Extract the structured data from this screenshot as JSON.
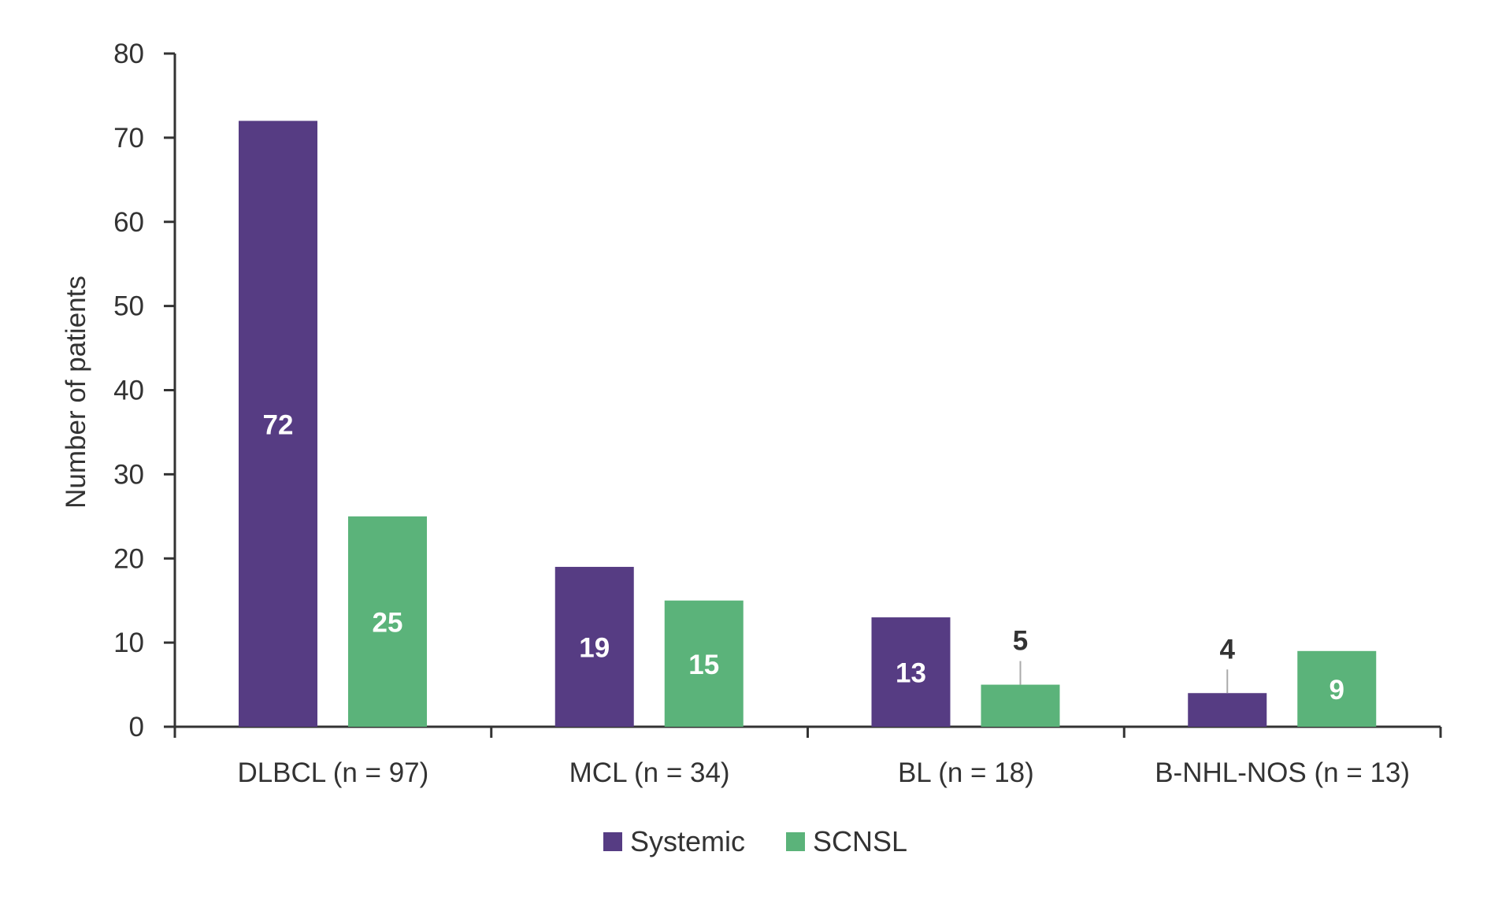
{
  "chart_data": {
    "type": "bar",
    "title": "",
    "xlabel": "",
    "ylabel": "Number of patients",
    "ylim": [
      0,
      80
    ],
    "yticks": [
      0,
      10,
      20,
      30,
      40,
      50,
      60,
      70,
      80
    ],
    "grid": false,
    "legend_position": "bottom-center",
    "categories": [
      "DLBCL (n = 97)",
      "MCL (n = 34)",
      "BL (n = 18)",
      "B-NHL-NOS (n = 13)"
    ],
    "series": [
      {
        "name": "Systemic",
        "color": "#563c83",
        "values": [
          72,
          19,
          13,
          4
        ]
      },
      {
        "name": "SCNSL",
        "color": "#5bb37a",
        "values": [
          25,
          15,
          5,
          9
        ]
      }
    ],
    "data_label_inside_color": "#ffffff",
    "data_label_outside_color": "#333333"
  }
}
